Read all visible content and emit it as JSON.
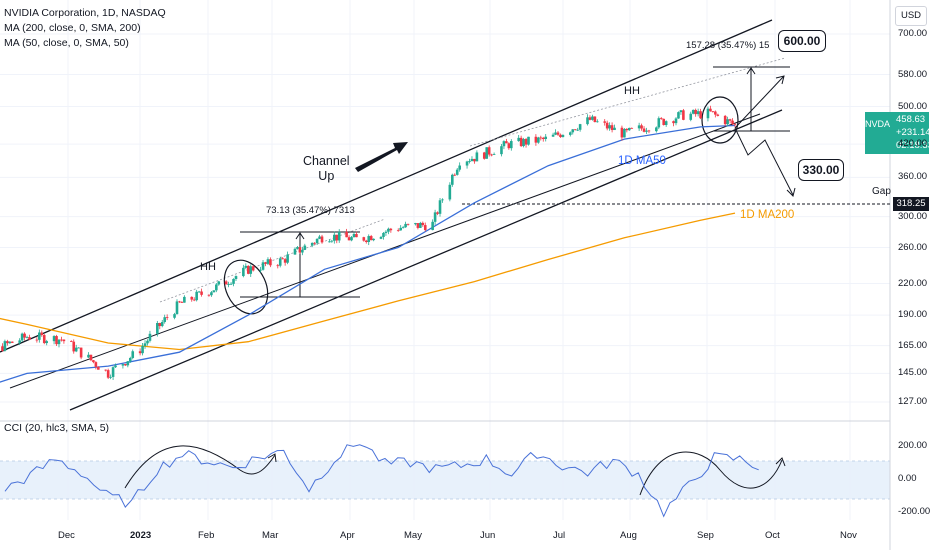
{
  "legend": {
    "title": "NVIDIA Corporation, 1D, NASDAQ",
    "ma200": "MA (200, close, 0, SMA, 200)",
    "ma50": "MA (50, close, 0, SMA, 50)",
    "cci": "CCI (20, hlc3, SMA, 5)"
  },
  "currency": "USD",
  "price_badge": {
    "symbol": "NVDA",
    "price": "458.63",
    "change": "+231.14%",
    "countdown": "02:18:33",
    "color": "#22ab94"
  },
  "gap_price_label": "318.25",
  "annotations": {
    "hh_left": "HH",
    "hh_right": "HH",
    "channel_up_line1": "Channel",
    "channel_up_line2": "Up",
    "measure_left": "73.13 (35.47%) 7313",
    "measure_right": "157.28 (35.47%) 15",
    "ma50_label": "1D MA50",
    "ma200_label": "1D MA200",
    "gap": "Gap",
    "target_up": "600.00",
    "target_down": "330.00"
  },
  "chart_data": [
    {
      "type": "candlestick",
      "title": "NVIDIA Corporation, 1D, NASDAQ",
      "scale": "log",
      "ylim": [
        117,
        760
      ],
      "y_ticks": [
        "700.00",
        "580.00",
        "500.00",
        "420.00",
        "360.00",
        "300.00",
        "260.00",
        "220.00",
        "190.00",
        "165.00",
        "145.00",
        "127.00"
      ],
      "x_ticks": [
        "Dec",
        "2023",
        "Feb",
        "Mar",
        "Apr",
        "May",
        "Jun",
        "Jul",
        "Aug",
        "Sep",
        "Oct",
        "Nov"
      ],
      "series": [
        {
          "name": "NVDA",
          "x": [
            "2022-11-01",
            "2022-11-15",
            "2022-12-01",
            "2022-12-15",
            "2023-01-03",
            "2023-01-15",
            "2023-02-01",
            "2023-02-15",
            "2023-03-01",
            "2023-03-15",
            "2023-04-01",
            "2023-04-15",
            "2023-05-01",
            "2023-05-15",
            "2023-05-26",
            "2023-06-01",
            "2023-06-15",
            "2023-07-01",
            "2023-07-18",
            "2023-08-01",
            "2023-08-24",
            "2023-09-05",
            "2023-09-15"
          ],
          "close": [
            148,
            160,
            172,
            170,
            145,
            160,
            200,
            215,
            235,
            245,
            275,
            270,
            285,
            290,
            390,
            395,
            420,
            430,
            470,
            440,
            480,
            485,
            458.63
          ]
        },
        {
          "name": "MA (50, close, 0, SMA, 50)",
          "x": [
            "2022-11-01",
            "2022-12-01",
            "2023-01-03",
            "2023-02-01",
            "2023-03-01",
            "2023-04-01",
            "2023-05-01",
            "2023-06-01",
            "2023-07-01",
            "2023-08-01",
            "2023-09-01",
            "2023-09-15"
          ],
          "values": [
            130,
            145,
            150,
            160,
            190,
            235,
            260,
            320,
            380,
            430,
            455,
            458
          ]
        },
        {
          "name": "MA (200, close, 0, SMA, 200)",
          "x": [
            "2022-11-01",
            "2022-12-01",
            "2023-01-03",
            "2023-02-01",
            "2023-03-01",
            "2023-04-01",
            "2023-05-01",
            "2023-06-01",
            "2023-07-01",
            "2023-08-01",
            "2023-09-01",
            "2023-09-15"
          ],
          "values": [
            196,
            182,
            167,
            162,
            168,
            185,
            203,
            222,
            246,
            272,
            295,
            305
          ]
        }
      ],
      "levels": [
        {
          "name": "Gap",
          "value": 318.25
        },
        {
          "name": "target_up",
          "value": 600.0
        },
        {
          "name": "target_down",
          "value": 330.0
        }
      ]
    },
    {
      "type": "line",
      "title": "CCI (20, hlc3, SMA, 5)",
      "y_ticks": [
        "200.00",
        "0.00",
        "-200.00"
      ],
      "ylim": [
        -240,
        330
      ],
      "series": [
        {
          "name": "CCI",
          "values": [
            -60,
            20,
            120,
            40,
            -100,
            -150,
            60,
            150,
            110,
            70,
            130,
            170,
            -60,
            120,
            230,
            90,
            100,
            60,
            80,
            120,
            30,
            160,
            80,
            40,
            110,
            30,
            -200,
            -40,
            130,
            120,
            60
          ]
        }
      ]
    }
  ]
}
